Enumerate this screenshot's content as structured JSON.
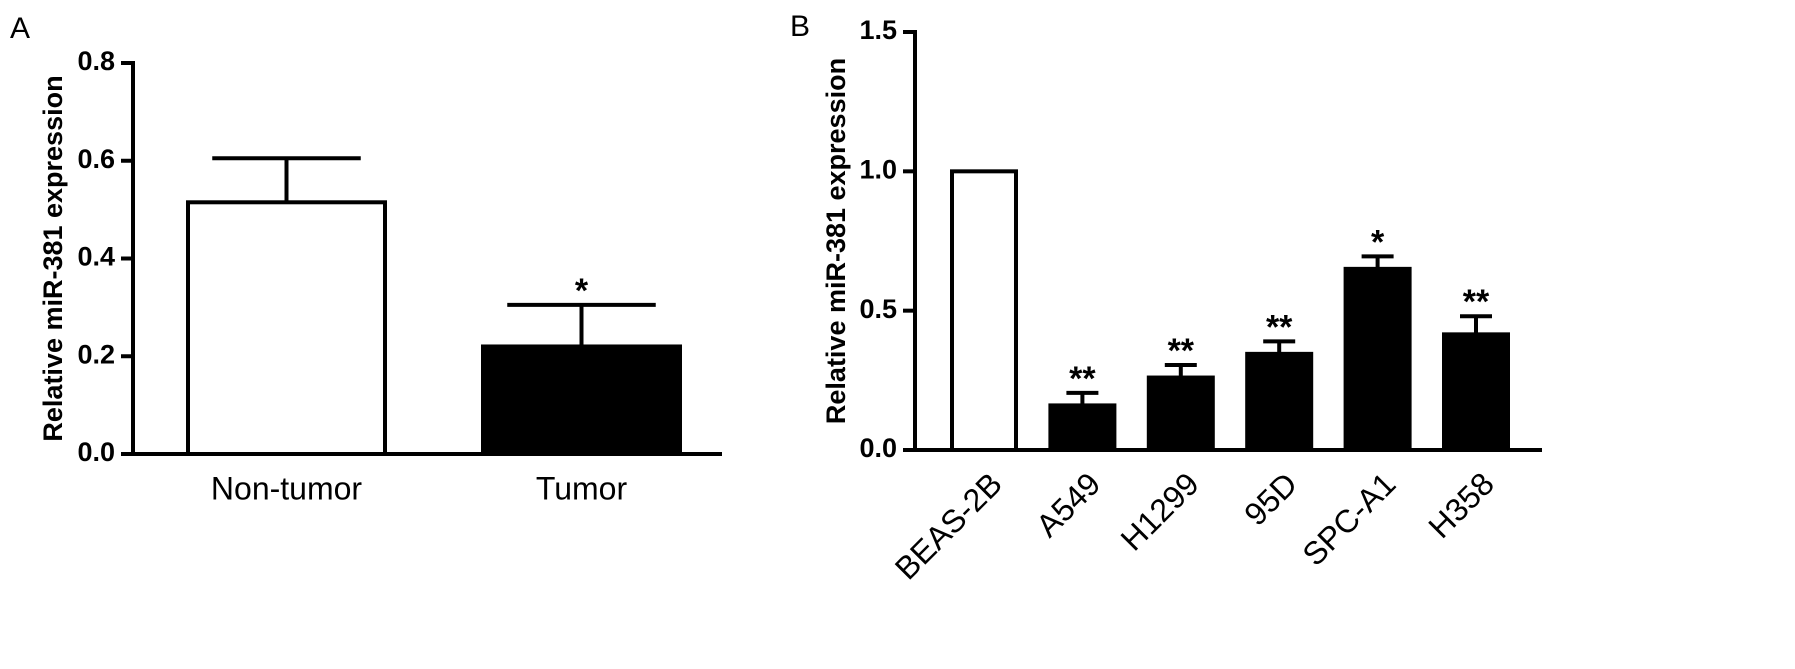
{
  "chart_data": [
    {
      "type": "bar",
      "panel_label": "A",
      "ylabel": "Relative miR-381 expression",
      "categories": [
        "Non-tumor",
        "Tumor"
      ],
      "values": [
        0.515,
        0.22
      ],
      "errors": [
        0.09,
        0.085
      ],
      "colors": [
        "#ffffff",
        "#000000"
      ],
      "annotations": [
        null,
        "*"
      ],
      "ylim": [
        0,
        0.8
      ],
      "yticks": [
        {
          "value": 0,
          "label": "0.0"
        },
        0.2,
        0.4,
        0.6,
        0.8
      ]
    },
    {
      "type": "bar",
      "panel_label": "B",
      "ylabel": "Relative miR-381 expression",
      "categories": [
        "BEAS-2B",
        "A549",
        "H1299",
        "95D",
        "SPC-A1",
        "H358"
      ],
      "values": [
        1,
        0.16,
        0.26,
        0.345,
        0.65,
        0.415
      ],
      "errors": [
        0,
        0.045,
        0.045,
        0.045,
        0.045,
        0.065
      ],
      "colors": [
        "#ffffff",
        "#000000",
        "#000000",
        "#000000",
        "#000000",
        "#000000"
      ],
      "annotations": [
        null,
        "**",
        "**",
        "**",
        "*",
        "**"
      ],
      "ylim": [
        0,
        1.5
      ],
      "yticks": [
        {
          "value": 0,
          "label": "0.0"
        },
        0.5,
        {
          "value": 1,
          "label": "1.0"
        },
        1.5
      ]
    }
  ]
}
